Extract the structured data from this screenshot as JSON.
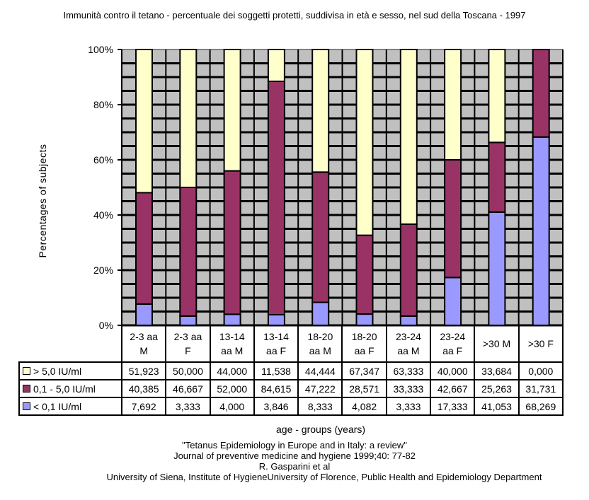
{
  "chart_data": {
    "type": "bar",
    "stacked": true,
    "title": "Immunità contro il tetano - percentuale dei soggetti protetti, suddivisa in età e sesso, nel sud della Toscana - 1997",
    "ylabel": "Percentages of subjects",
    "xlabel": "age - groups (years)",
    "ylim": [
      0,
      100
    ],
    "yticks": [
      "0%",
      "20%",
      "40%",
      "60%",
      "80%",
      "100%"
    ],
    "categories": [
      [
        "2-3 aa",
        "M"
      ],
      [
        "2-3 aa",
        "F"
      ],
      [
        "13-14",
        "aa M"
      ],
      [
        "13-14",
        "aa F"
      ],
      [
        "18-20",
        "aa M"
      ],
      [
        "18-20",
        "aa F"
      ],
      [
        "23-24",
        "aa M"
      ],
      [
        "23-24",
        "aa F"
      ],
      [
        ">30 M",
        ""
      ],
      [
        ">30 F",
        ""
      ]
    ],
    "series": [
      {
        "name": "< 0,1 IU/ml",
        "color": "#9999ff",
        "values": [
          7.692,
          3.333,
          4.0,
          3.846,
          8.333,
          4.082,
          3.333,
          17.333,
          41.053,
          68.269
        ],
        "labels": [
          "7,692",
          "3,333",
          "4,000",
          "3,846",
          "8,333",
          "4,082",
          "3,333",
          "17,333",
          "41,053",
          "68,269"
        ]
      },
      {
        "name": "0,1 - 5,0 IU/ml",
        "color": "#993366",
        "values": [
          40.385,
          46.667,
          52.0,
          84.615,
          47.222,
          28.571,
          33.333,
          42.667,
          25.263,
          31.731
        ],
        "labels": [
          "40,385",
          "46,667",
          "52,000",
          "84,615",
          "47,222",
          "28,571",
          "33,333",
          "42,667",
          "25,263",
          "31,731"
        ]
      },
      {
        "name": "> 5,0 IU/ml",
        "color": "#ffffcc",
        "values": [
          51.923,
          50.0,
          44.0,
          11.538,
          44.444,
          67.347,
          63.333,
          40.0,
          33.684,
          0.0
        ],
        "labels": [
          "51,923",
          "50,000",
          "44,000",
          "11,538",
          "44,444",
          "67,347",
          "63,333",
          "40,000",
          "33,684",
          "0,000"
        ]
      }
    ],
    "table_row_order": [
      2,
      1,
      0
    ],
    "grid": true,
    "plot_bg": "#c0c0c0"
  },
  "source": {
    "line1": "\"Tetanus Epidemiology in Europe and in Italy: a review\"",
    "line2": "Journal of preventive medicine and hygiene 1999;40: 77-82",
    "line3": "R. Gasparini et al",
    "line4": "University of Siena, Institute of HygieneUniversity of Florence, Public Health and Epidemiology Department"
  }
}
